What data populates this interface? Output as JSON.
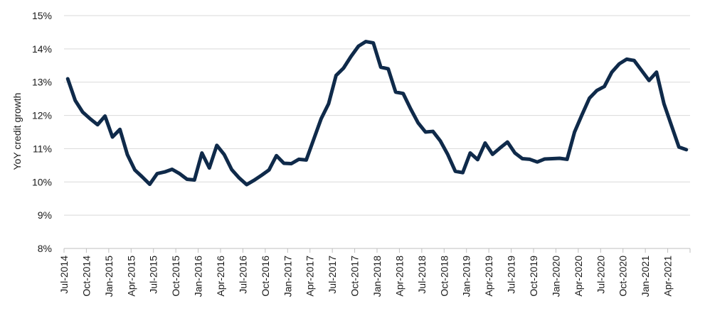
{
  "chart_data": {
    "type": "line",
    "title": "",
    "xlabel": "",
    "ylabel": "YoY credit growth",
    "ylim": [
      8,
      15
    ],
    "yticks": [
      "8%",
      "9%",
      "10%",
      "11%",
      "12%",
      "13%",
      "14%",
      "15%"
    ],
    "ytick_values": [
      8,
      9,
      10,
      11,
      12,
      13,
      14,
      15
    ],
    "y_unit": "%",
    "grid": true,
    "legend": "none",
    "x_start": "2014-07",
    "x_end": "2021-06",
    "xticks": [
      "Jul-2014",
      "Oct-2014",
      "Jan-2015",
      "Apr-2015",
      "Jul-2015",
      "Oct-2015",
      "Jan-2016",
      "Apr-2016",
      "Jul-2016",
      "Oct-2016",
      "Jan-2017",
      "Apr-2017",
      "Jul-2017",
      "Oct-2017",
      "Jan-2018",
      "Apr-2018",
      "Jul-2018",
      "Oct-2018",
      "Jan-2019",
      "Apr-2019",
      "Jul-2019",
      "Oct-2019",
      "Jan-2020",
      "Apr-2020",
      "Jul-2020",
      "Oct-2020",
      "Jan-2021",
      "Apr-2021"
    ],
    "series": [
      {
        "color": "#0f2a4a",
        "x": [
          "2014-07",
          "2014-08",
          "2014-09",
          "2014-10",
          "2014-11",
          "2014-12",
          "2015-01",
          "2015-02",
          "2015-03",
          "2015-04",
          "2015-05",
          "2015-06",
          "2015-07",
          "2015-08",
          "2015-09",
          "2015-10",
          "2015-11",
          "2015-12",
          "2016-01",
          "2016-02",
          "2016-03",
          "2016-04",
          "2016-05",
          "2016-06",
          "2016-07",
          "2016-08",
          "2016-09",
          "2016-10",
          "2016-11",
          "2016-12",
          "2017-01",
          "2017-02",
          "2017-03",
          "2017-04",
          "2017-05",
          "2017-06",
          "2017-07",
          "2017-08",
          "2017-09",
          "2017-10",
          "2017-11",
          "2017-12",
          "2018-01",
          "2018-02",
          "2018-03",
          "2018-04",
          "2018-05",
          "2018-06",
          "2018-07",
          "2018-08",
          "2018-09",
          "2018-10",
          "2018-11",
          "2018-12",
          "2019-01",
          "2019-02",
          "2019-03",
          "2019-04",
          "2019-05",
          "2019-06",
          "2019-07",
          "2019-08",
          "2019-09",
          "2019-10",
          "2019-11",
          "2019-12",
          "2020-01",
          "2020-02",
          "2020-03",
          "2020-04",
          "2020-05",
          "2020-06",
          "2020-07",
          "2020-08",
          "2020-09",
          "2020-10",
          "2020-11",
          "2020-12",
          "2021-01",
          "2021-02",
          "2021-03",
          "2021-04",
          "2021-05",
          "2021-06"
        ],
        "values": [
          13.1,
          12.45,
          12.1,
          11.9,
          11.72,
          11.98,
          11.35,
          11.58,
          10.82,
          10.36,
          10.15,
          9.93,
          10.25,
          10.3,
          10.38,
          10.25,
          10.08,
          10.06,
          10.87,
          10.42,
          11.1,
          10.82,
          10.37,
          10.12,
          9.92,
          10.05,
          10.2,
          10.36,
          10.79,
          10.56,
          10.55,
          10.68,
          10.66,
          11.28,
          11.9,
          12.35,
          13.2,
          13.42,
          13.77,
          14.08,
          14.22,
          14.18,
          13.45,
          13.4,
          12.7,
          12.66,
          12.2,
          11.78,
          11.5,
          11.52,
          11.23,
          10.82,
          10.32,
          10.28,
          10.87,
          10.67,
          11.17,
          10.83,
          11.02,
          11.2,
          10.87,
          10.7,
          10.68,
          10.6,
          10.69,
          10.7,
          10.71,
          10.68,
          11.5,
          12.02,
          12.52,
          12.75,
          12.87,
          13.3,
          13.55,
          13.69,
          13.65,
          13.35,
          13.05,
          13.3,
          12.35,
          11.7,
          11.05,
          10.97
        ]
      }
    ]
  }
}
